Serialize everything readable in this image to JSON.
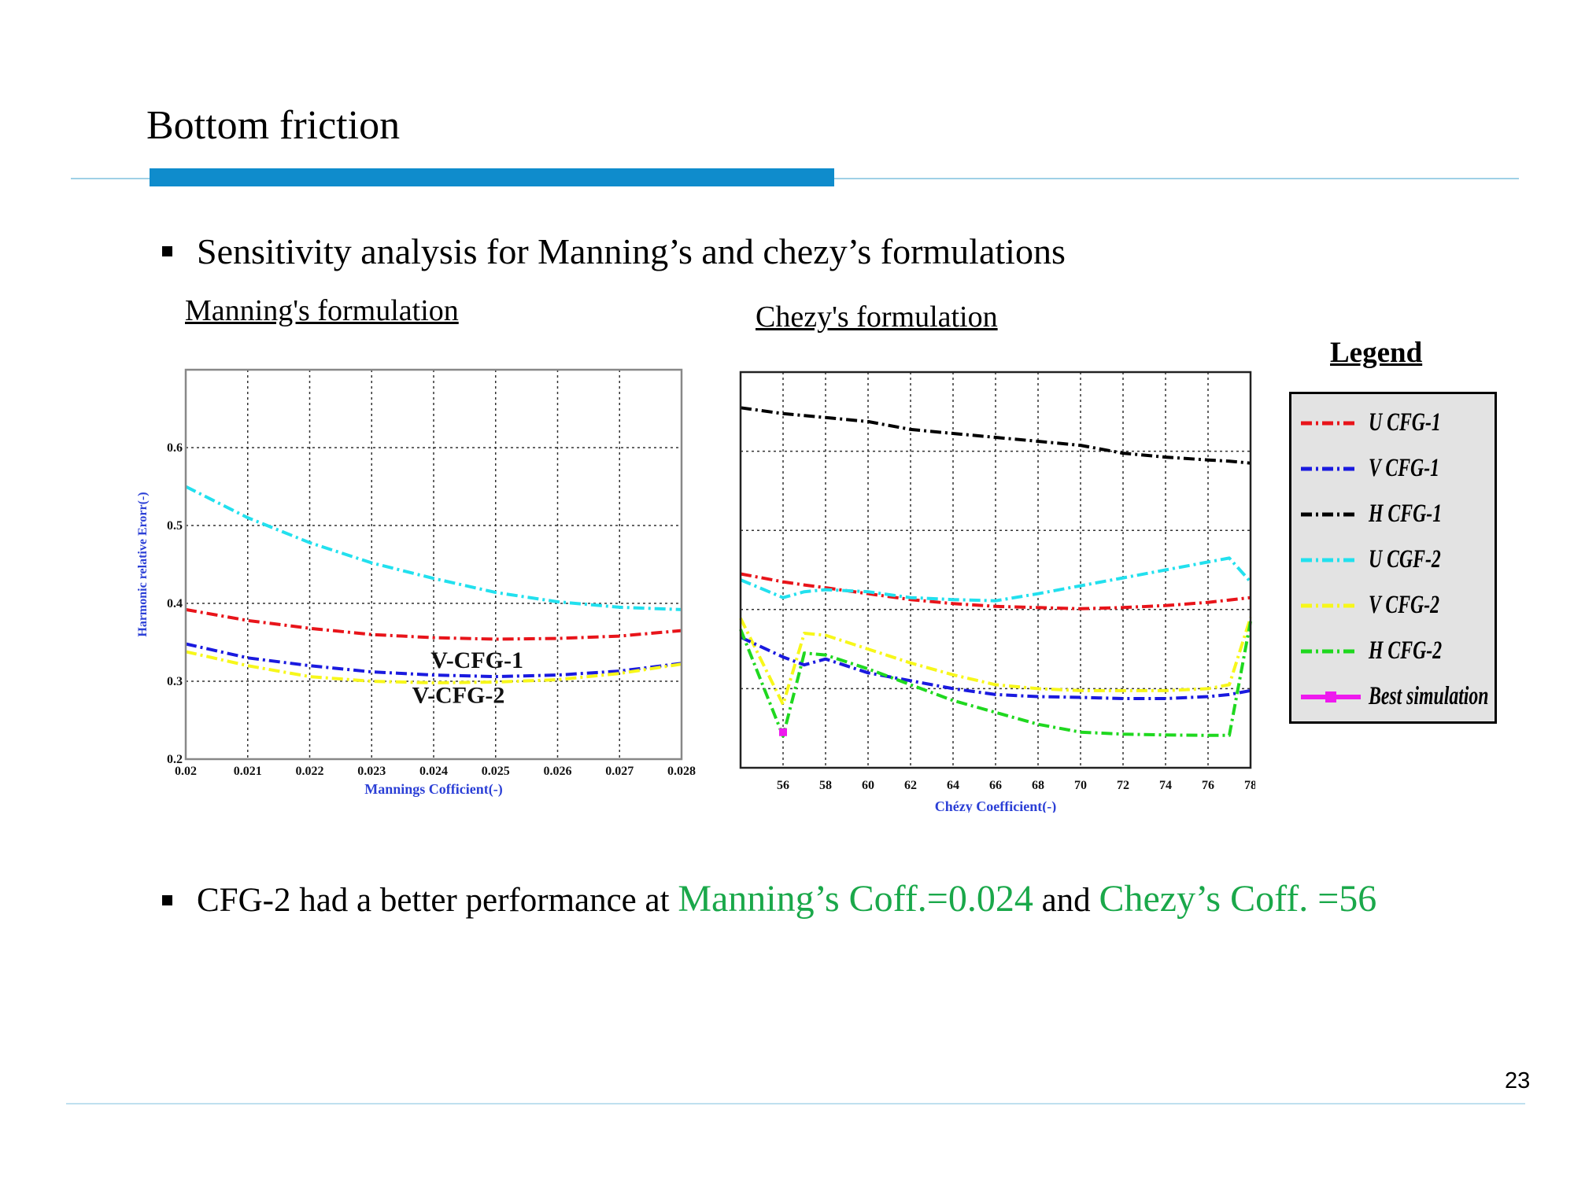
{
  "slide": {
    "title": "Bottom friction",
    "bullet1": "Sensitivity analysis for Manning’s and chezy’s formulations",
    "bullet2_pre": "CFG-2 had a better performance at ",
    "bullet2_hl1": "Manning’s Coff.=0.024",
    "bullet2_mid": " and ",
    "bullet2_hl2": "Chezy’s Coff. =56",
    "page_number": "23"
  },
  "headings": {
    "manning": "Manning's formulation",
    "chezy": "Chezy's formulation",
    "legend": "Legend"
  },
  "legend": {
    "items": [
      {
        "label": "U CFG-1",
        "color": "#e8141a",
        "style": "dashdot"
      },
      {
        "label": "V CFG-1",
        "color": "#1a1adf",
        "style": "dashdot"
      },
      {
        "label": "H CFG-1",
        "color": "#000000",
        "style": "dashdot"
      },
      {
        "label": "U CGF-2",
        "color": "#22e0ee",
        "style": "dashdot"
      },
      {
        "label": "V CFG-2",
        "color": "#f7f71a",
        "style": "dashdot"
      },
      {
        "label": "H CFG-2",
        "color": "#1fd81f",
        "style": "dashdot"
      },
      {
        "label": "Best simulation",
        "color": "#ee1aee",
        "style": "solid-marker"
      }
    ]
  },
  "chart_data": [
    {
      "type": "line",
      "xlabel": "Mannings Cofficient(-)",
      "ylabel": "Harmonic relative Erorr(-)",
      "xlim": [
        0.02,
        0.028
      ],
      "ylim": [
        0.2,
        0.7
      ],
      "xticks": [
        "0.02",
        "0.021",
        "0.022",
        "0.023",
        "0.024",
        "0.025",
        "0.026",
        "0.027",
        "0.028"
      ],
      "yticks": [
        "0.2",
        "0.3",
        "0.4",
        "0.5",
        "0.6"
      ],
      "grid": true,
      "annotations": [
        {
          "text": "V-CFG-1",
          "x": 0.0247,
          "y": 0.317
        },
        {
          "text": "V-CFG-2",
          "x": 0.0244,
          "y": 0.272
        }
      ],
      "x": [
        0.02,
        0.021,
        0.022,
        0.023,
        0.024,
        0.025,
        0.026,
        0.027,
        0.028
      ],
      "series": [
        {
          "name": "U CFG-1",
          "color": "#e8141a",
          "values": [
            0.392,
            0.378,
            0.368,
            0.36,
            0.356,
            0.354,
            0.355,
            0.358,
            0.365
          ]
        },
        {
          "name": "V CFG-1",
          "color": "#1a1adf",
          "values": [
            0.348,
            0.33,
            0.32,
            0.312,
            0.308,
            0.306,
            0.308,
            0.313,
            0.323
          ]
        },
        {
          "name": "U CGF-2",
          "color": "#22e0ee",
          "values": [
            0.55,
            0.51,
            0.478,
            0.452,
            0.432,
            0.414,
            0.402,
            0.395,
            0.392
          ]
        },
        {
          "name": "V CFG-2",
          "color": "#f7f71a",
          "values": [
            0.338,
            0.32,
            0.306,
            0.3,
            0.298,
            0.299,
            0.302,
            0.31,
            0.322
          ]
        }
      ]
    },
    {
      "type": "line",
      "xlabel": "Chézy Coefficient(-)",
      "ylabel": "",
      "xlim": [
        54,
        78
      ],
      "ylim": [
        0,
        1
      ],
      "xticks": [
        "56",
        "58",
        "60",
        "62",
        "64",
        "66",
        "68",
        "70",
        "72",
        "74",
        "76",
        "78"
      ],
      "grid": true,
      "x": [
        54,
        56,
        57,
        58,
        60,
        62,
        64,
        66,
        68,
        70,
        72,
        74,
        76,
        77,
        78
      ],
      "series": [
        {
          "name": "H CFG-1",
          "color": "#000000",
          "values": [
            0.91,
            0.895,
            0.89,
            0.885,
            0.875,
            0.855,
            0.845,
            0.835,
            0.825,
            0.815,
            0.795,
            0.785,
            0.778,
            0.775,
            0.77
          ]
        },
        {
          "name": "U CFG-1",
          "color": "#e8141a",
          "values": [
            0.49,
            0.47,
            0.462,
            0.455,
            0.44,
            0.425,
            0.415,
            0.408,
            0.405,
            0.402,
            0.405,
            0.41,
            0.418,
            0.424,
            0.43
          ]
        },
        {
          "name": "U CGF-2",
          "color": "#22e0ee",
          "values": [
            0.475,
            0.43,
            0.445,
            0.45,
            0.445,
            0.43,
            0.425,
            0.422,
            0.44,
            0.46,
            0.48,
            0.5,
            0.52,
            0.53,
            0.47
          ]
        },
        {
          "name": "V CFG-2",
          "color": "#f7f71a",
          "values": [
            0.378,
            0.16,
            0.34,
            0.335,
            0.3,
            0.265,
            0.235,
            0.21,
            0.2,
            0.195,
            0.195,
            0.195,
            0.2,
            0.21,
            0.38
          ]
        },
        {
          "name": "V CFG-1",
          "color": "#1a1adf",
          "values": [
            0.33,
            0.28,
            0.26,
            0.275,
            0.24,
            0.22,
            0.2,
            0.185,
            0.18,
            0.178,
            0.175,
            0.175,
            0.18,
            0.185,
            0.195
          ]
        },
        {
          "name": "H CFG-2",
          "color": "#1fd81f",
          "values": [
            0.35,
            0.08,
            0.29,
            0.285,
            0.25,
            0.21,
            0.17,
            0.14,
            0.11,
            0.09,
            0.085,
            0.083,
            0.082,
            0.082,
            0.37
          ]
        }
      ],
      "best_simulation": {
        "x": 56,
        "y": 0.09,
        "color": "#ee1aee"
      }
    }
  ]
}
